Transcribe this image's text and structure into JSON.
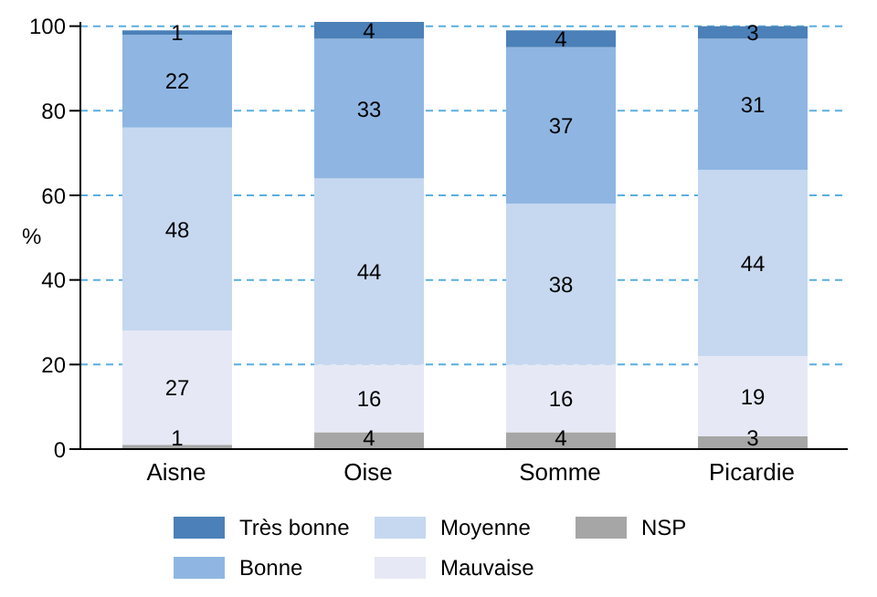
{
  "chart_data": {
    "type": "bar",
    "stacked": true,
    "ylabel": "%",
    "categories": [
      "Aisne",
      "Oise",
      "Somme",
      "Picardie"
    ],
    "series": [
      {
        "name": "NSP",
        "color": "#a6a6a6",
        "values": [
          1,
          4,
          4,
          3
        ]
      },
      {
        "name": "Mauvaise",
        "color": "#e6e9f5",
        "values": [
          27,
          16,
          16,
          19
        ]
      },
      {
        "name": "Moyenne",
        "color": "#c6d8f0",
        "values": [
          48,
          44,
          38,
          44
        ]
      },
      {
        "name": "Bonne",
        "color": "#8fb6e2",
        "values": [
          22,
          33,
          37,
          31
        ]
      },
      {
        "name": "Très bonne",
        "color": "#4b80b8",
        "values": [
          1,
          4,
          4,
          3
        ]
      }
    ],
    "ylim": [
      0,
      101
    ],
    "yticks": [
      0,
      20,
      40,
      60,
      80,
      100
    ],
    "grid": "y",
    "legend": "bottom",
    "data_labels": true
  }
}
